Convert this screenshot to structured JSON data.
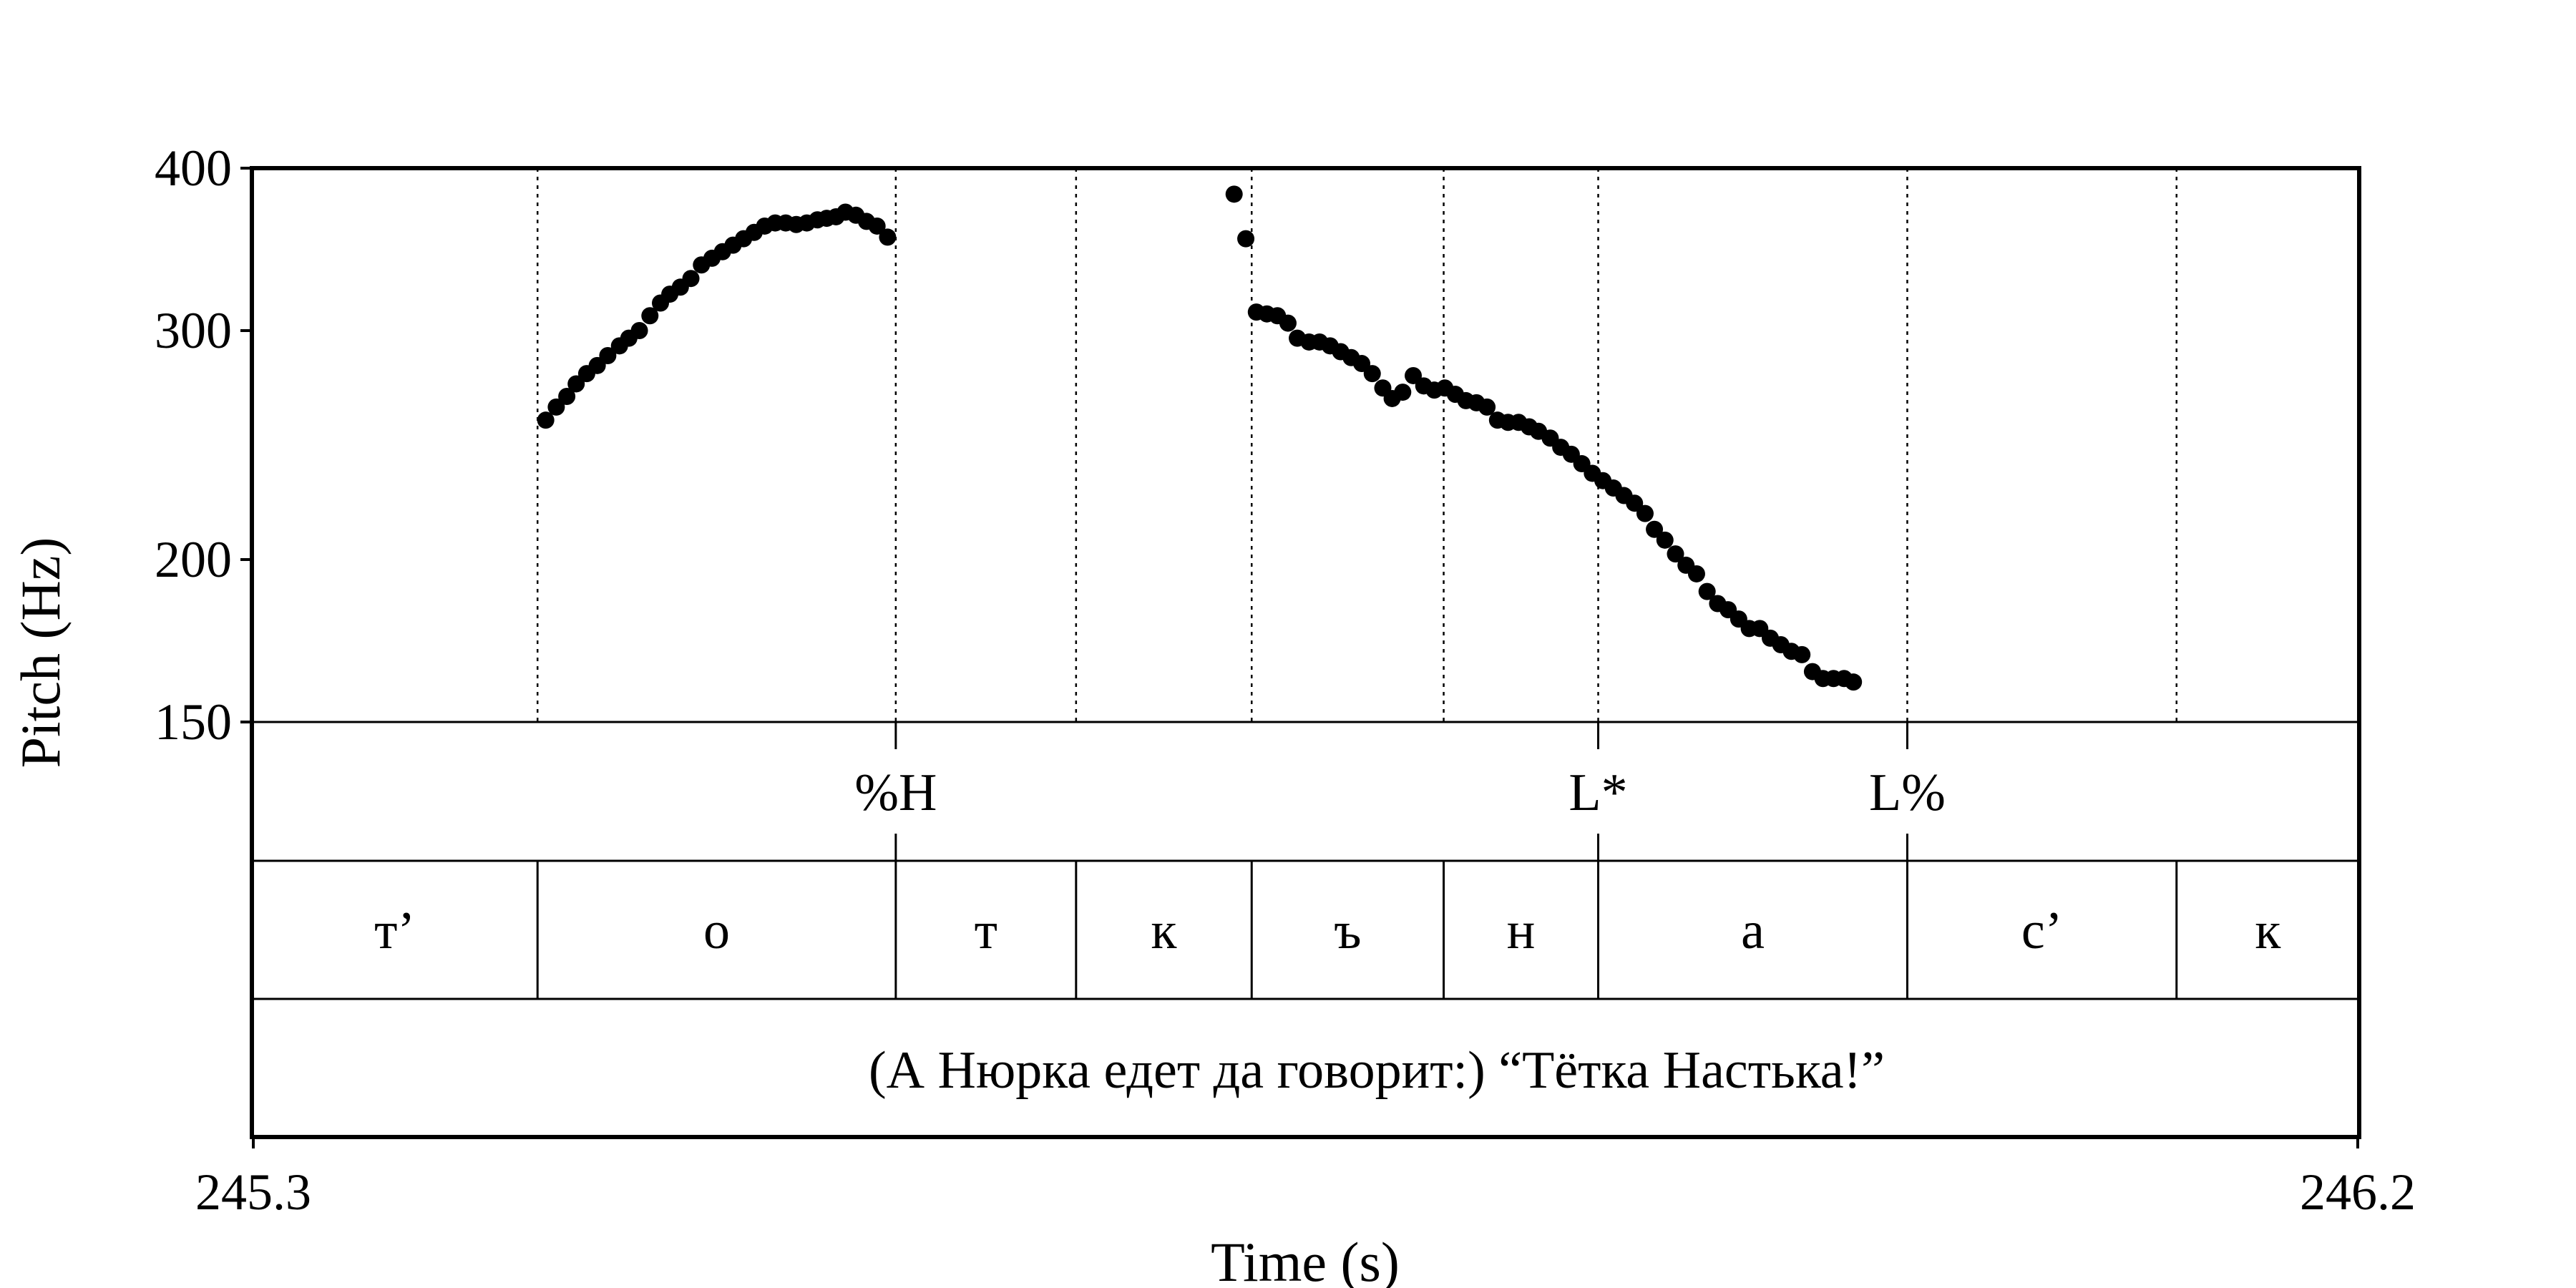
{
  "chart_data": {
    "type": "scatter",
    "title": "",
    "xlabel": "Time (s)",
    "ylabel": "Pitch (Hz)",
    "xlim": [
      245.3,
      246.2
    ],
    "ylim": [
      150,
      400
    ],
    "y_scale": "log",
    "x_ticks": [
      "245.3",
      "246.2"
    ],
    "y_ticks": [
      {
        "value": 150,
        "label": "150"
      },
      {
        "value": 200,
        "label": "200"
      },
      {
        "value": 300,
        "label": "300"
      },
      {
        "value": 400,
        "label": "400"
      }
    ],
    "grid": false,
    "boundary_times": [
      245.422,
      245.575,
      245.652,
      245.727,
      245.809,
      245.875,
      246.007,
      246.122
    ],
    "points": [
      [
        245.4255,
        256
      ],
      [
        245.43,
        262
      ],
      [
        245.4345,
        267
      ],
      [
        245.4385,
        273
      ],
      [
        245.443,
        278
      ],
      [
        245.4475,
        282
      ],
      [
        245.452,
        287
      ],
      [
        245.457,
        292
      ],
      [
        245.461,
        296
      ],
      [
        245.4655,
        300
      ],
      [
        245.47,
        308
      ],
      [
        245.4745,
        315
      ],
      [
        245.4785,
        320
      ],
      [
        245.483,
        324
      ],
      [
        245.4875,
        329
      ],
      [
        245.492,
        337
      ],
      [
        245.4965,
        341
      ],
      [
        245.501,
        345
      ],
      [
        245.5055,
        349
      ],
      [
        245.51,
        353
      ],
      [
        245.5145,
        357
      ],
      [
        245.519,
        361
      ],
      [
        245.5235,
        363
      ],
      [
        245.528,
        363
      ],
      [
        245.5325,
        362
      ],
      [
        245.537,
        363
      ],
      [
        245.5415,
        365
      ],
      [
        245.5455,
        366
      ],
      [
        245.5495,
        367
      ],
      [
        245.5535,
        370
      ],
      [
        245.558,
        368
      ],
      [
        245.5625,
        364
      ],
      [
        245.567,
        361
      ],
      [
        245.5715,
        354
      ],
      [
        245.7195,
        382
      ],
      [
        245.7245,
        353
      ],
      [
        245.729,
        310
      ],
      [
        245.7335,
        309
      ],
      [
        245.738,
        308
      ],
      [
        245.7425,
        304
      ],
      [
        245.7465,
        296
      ],
      [
        245.7515,
        294
      ],
      [
        245.756,
        294
      ],
      [
        245.7605,
        292
      ],
      [
        245.765,
        289
      ],
      [
        245.7695,
        286
      ],
      [
        245.774,
        283
      ],
      [
        245.7785,
        278
      ],
      [
        245.783,
        271
      ],
      [
        245.787,
        266
      ],
      [
        245.7915,
        269
      ],
      [
        245.796,
        277
      ],
      [
        245.8005,
        272
      ],
      [
        245.805,
        270
      ],
      [
        245.8095,
        271
      ],
      [
        245.814,
        268
      ],
      [
        245.8185,
        265
      ],
      [
        245.823,
        264
      ],
      [
        245.8275,
        262
      ],
      [
        245.832,
        256
      ],
      [
        245.8365,
        255
      ],
      [
        245.841,
        255
      ],
      [
        245.8455,
        253
      ],
      [
        245.8495,
        251
      ],
      [
        245.8545,
        248
      ],
      [
        245.859,
        244
      ],
      [
        245.8635,
        241
      ],
      [
        245.868,
        237
      ],
      [
        245.8725,
        233
      ],
      [
        245.877,
        230
      ],
      [
        245.8815,
        227
      ],
      [
        245.886,
        224
      ],
      [
        245.8905,
        221
      ],
      [
        245.895,
        217
      ],
      [
        245.899,
        211
      ],
      [
        245.9035,
        207
      ],
      [
        245.908,
        202
      ],
      [
        245.9125,
        198
      ],
      [
        245.917,
        195
      ],
      [
        245.9215,
        189
      ],
      [
        245.926,
        185
      ],
      [
        245.9305,
        183
      ],
      [
        245.935,
        180
      ],
      [
        245.9395,
        177
      ],
      [
        245.944,
        177
      ],
      [
        245.9485,
        174
      ],
      [
        245.953,
        172
      ],
      [
        245.9575,
        170
      ],
      [
        245.962,
        169
      ],
      [
        245.9665,
        164
      ],
      [
        245.971,
        162
      ],
      [
        245.9755,
        162
      ],
      [
        245.98,
        162
      ],
      [
        245.984,
        161
      ]
    ],
    "tones": [
      {
        "label": "%H",
        "time": 245.575
      },
      {
        "label": "L*",
        "time": 245.875
      },
      {
        "label": "L%",
        "time": 246.007
      }
    ],
    "segments": [
      "т’",
      "о",
      "т",
      "к",
      "ъ",
      "н",
      "а",
      "с’",
      "к"
    ],
    "sentence": "(А Нюрка едет да говорит:) “Тётка Настька!”"
  }
}
